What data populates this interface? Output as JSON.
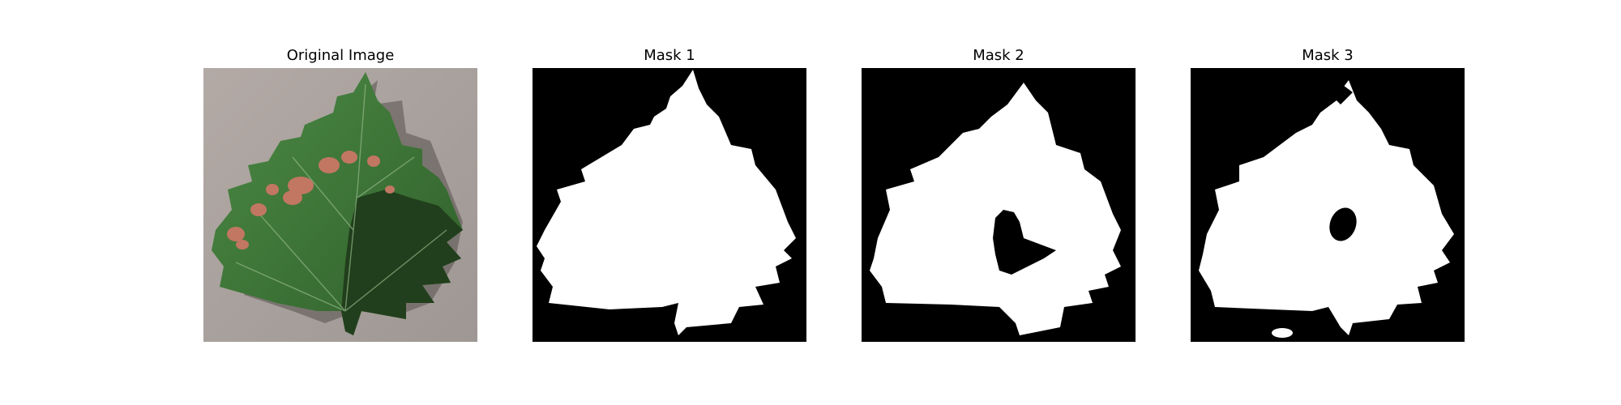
{
  "panels": [
    {
      "title": "Original Image",
      "image": "leaf-photo"
    },
    {
      "title": "Mask 1",
      "image": "binary-mask"
    },
    {
      "title": "Mask 2",
      "image": "binary-mask"
    },
    {
      "title": "Mask 3",
      "image": "binary-mask"
    }
  ],
  "colors": {
    "background": "#ffffff",
    "mask_foreground": "#ffffff",
    "mask_background": "#000000",
    "photo_background": "#aaa29e",
    "leaf_light": "#3d7a38",
    "leaf_dark": "#1f3d1a",
    "lesion": "#c27763"
  }
}
